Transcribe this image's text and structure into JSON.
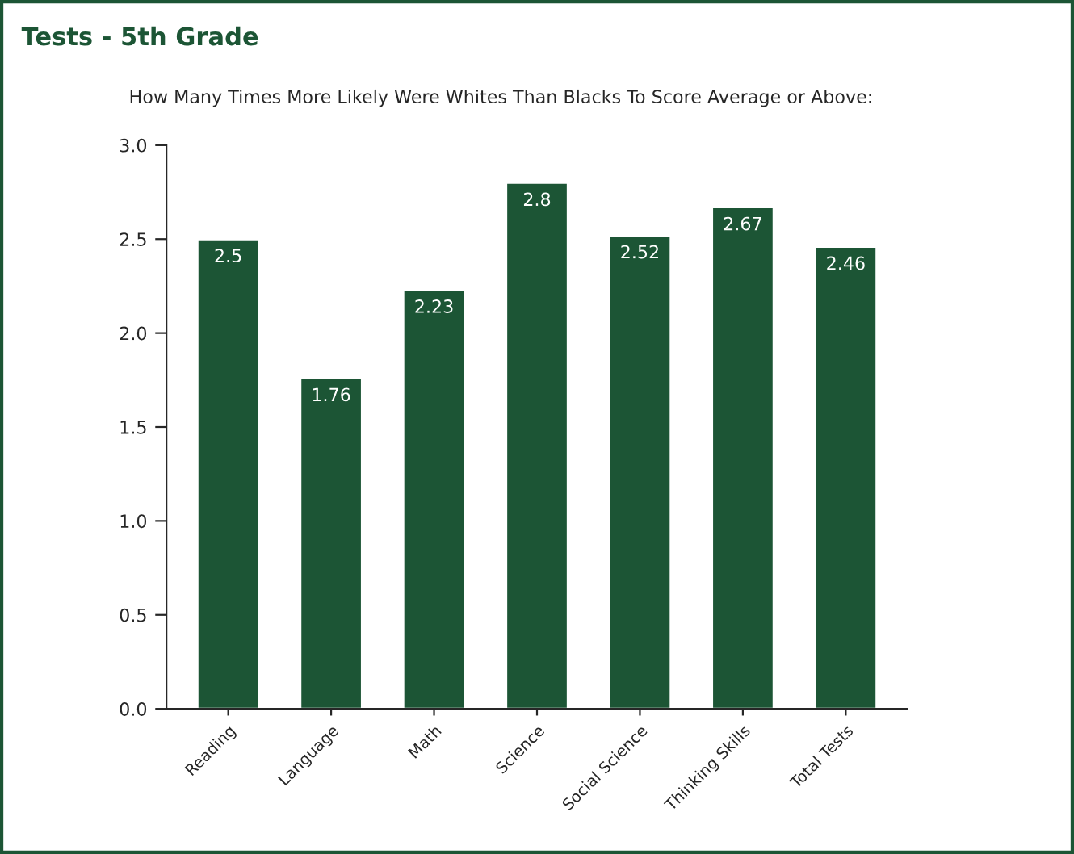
{
  "chart_data": {
    "type": "bar",
    "title": "Tests - 5th Grade",
    "subtitle": "How Many Times More Likely Were Whites Than Blacks To Score Average or Above:",
    "categories": [
      "Reading",
      "Language",
      "Math",
      "Science",
      "Social Science",
      "Thinking Skills",
      "Total Tests"
    ],
    "values": [
      2.5,
      1.76,
      2.23,
      2.8,
      2.52,
      2.67,
      2.46
    ],
    "value_labels": [
      "2.5",
      "1.76",
      "2.23",
      "2.8",
      "2.52",
      "2.67",
      "2.46"
    ],
    "color": "#1c5535",
    "ylim": [
      0,
      3
    ],
    "yticks": [
      "0.0",
      "0.5",
      "1.0",
      "1.5",
      "2.0",
      "2.5",
      "3.0"
    ],
    "grid": false,
    "legend": false
  }
}
